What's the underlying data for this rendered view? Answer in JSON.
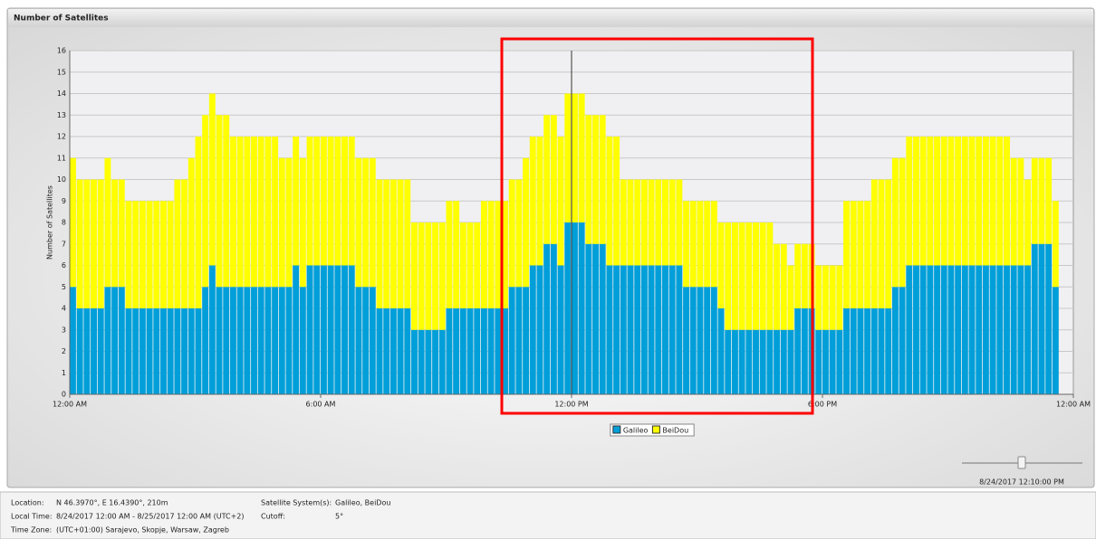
{
  "panel_title": "Number of Satellites",
  "chart_data": {
    "type": "bar",
    "stacked": true,
    "ylabel": "Number of Satellites",
    "x": [
      0,
      10,
      20,
      30,
      40,
      50,
      60,
      70,
      80,
      90,
      100,
      110,
      120,
      130,
      140,
      150,
      160,
      170,
      180,
      190,
      200,
      210,
      220,
      230,
      240,
      250,
      260,
      270,
      280,
      290,
      300,
      310,
      320,
      330,
      340,
      350,
      360,
      370,
      380,
      390,
      400,
      410,
      420,
      430,
      440,
      450,
      460,
      470,
      480,
      490,
      500,
      510,
      520,
      530,
      540,
      550,
      560,
      570,
      580,
      590,
      600,
      610,
      620,
      630,
      640,
      650,
      660,
      670,
      680,
      690,
      700,
      710,
      720,
      730,
      740,
      750,
      760,
      770,
      780,
      790,
      800,
      810,
      820,
      830,
      840,
      850,
      860,
      870,
      880,
      890,
      900,
      910,
      920,
      930,
      940,
      950,
      960,
      970,
      980,
      990,
      1000,
      1010,
      1020,
      1030,
      1040,
      1050,
      1060,
      1070,
      1080,
      1090,
      1100,
      1110,
      1120,
      1130,
      1140,
      1150,
      1160,
      1170,
      1180,
      1190,
      1200,
      1210,
      1220,
      1230,
      1240,
      1250,
      1260,
      1270,
      1280,
      1290,
      1300,
      1310,
      1320,
      1330,
      1340,
      1350,
      1360,
      1370,
      1380,
      1390,
      1400,
      1410
    ],
    "xlim": [
      0,
      1440
    ],
    "xticks": [
      {
        "value": 0,
        "label": "12:00 AM"
      },
      {
        "value": 360,
        "label": "6:00 AM"
      },
      {
        "value": 720,
        "label": "12:00 PM"
      },
      {
        "value": 1080,
        "label": "6:00 PM"
      },
      {
        "value": 1440,
        "label": "12:00 AM"
      }
    ],
    "ylim": [
      0,
      16
    ],
    "yticks": [
      0,
      1,
      2,
      3,
      4,
      5,
      6,
      7,
      8,
      9,
      10,
      11,
      12,
      13,
      14,
      15,
      16
    ],
    "grid": true,
    "legend": "bottom",
    "series": [
      {
        "name": "Galileo",
        "color": "#009fd9",
        "values": [
          5,
          4,
          4,
          4,
          4,
          5,
          5,
          5,
          4,
          4,
          4,
          4,
          4,
          4,
          4,
          4,
          4,
          4,
          4,
          5,
          6,
          5,
          5,
          5,
          5,
          5,
          5,
          5,
          5,
          5,
          5,
          5,
          6,
          5,
          6,
          6,
          6,
          6,
          6,
          6,
          6,
          5,
          5,
          5,
          4,
          4,
          4,
          4,
          4,
          3,
          3,
          3,
          3,
          3,
          4,
          4,
          4,
          4,
          4,
          4,
          4,
          4,
          4,
          5,
          5,
          5,
          6,
          6,
          7,
          7,
          6,
          8,
          8,
          8,
          7,
          7,
          7,
          6,
          6,
          6,
          6,
          6,
          6,
          6,
          6,
          6,
          6,
          6,
          5,
          5,
          5,
          5,
          5,
          4,
          3,
          3,
          3,
          3,
          3,
          3,
          3,
          3,
          3,
          3,
          4,
          4,
          4,
          3,
          3,
          3,
          3,
          4,
          4,
          4,
          4,
          4,
          4,
          4,
          5,
          5,
          6,
          6,
          6,
          6,
          6,
          6,
          6,
          6,
          6,
          6,
          6,
          6,
          6,
          6,
          6,
          6,
          6,
          6,
          7,
          7,
          7,
          5
        ]
      },
      {
        "name": "BeiDou",
        "color": "#ffff00",
        "values": [
          6,
          6,
          6,
          6,
          6,
          6,
          5,
          5,
          5,
          5,
          5,
          5,
          5,
          5,
          5,
          6,
          6,
          7,
          8,
          8,
          8,
          8,
          8,
          7,
          7,
          7,
          7,
          7,
          7,
          7,
          6,
          6,
          6,
          6,
          6,
          6,
          6,
          6,
          6,
          6,
          6,
          6,
          6,
          6,
          6,
          6,
          6,
          6,
          6,
          5,
          5,
          5,
          5,
          5,
          5,
          5,
          4,
          4,
          4,
          5,
          5,
          5,
          5,
          5,
          5,
          6,
          6,
          6,
          6,
          6,
          6,
          6,
          6,
          6,
          6,
          6,
          6,
          6,
          6,
          4,
          4,
          4,
          4,
          4,
          4,
          4,
          4,
          4,
          4,
          4,
          4,
          4,
          4,
          4,
          5,
          5,
          5,
          5,
          5,
          5,
          5,
          4,
          4,
          3,
          3,
          3,
          3,
          3,
          3,
          3,
          3,
          5,
          5,
          5,
          5,
          6,
          6,
          6,
          6,
          6,
          6,
          6,
          6,
          6,
          6,
          6,
          6,
          6,
          6,
          6,
          6,
          6,
          6,
          6,
          6,
          5,
          5,
          4,
          4,
          4,
          4,
          4
        ]
      }
    ]
  },
  "slider": {
    "label": "8/24/2017 12:10:00 PM"
  },
  "info": {
    "location_label": "Location:",
    "location": "N 46.3970°, E 16.4390°, 210m",
    "local_time_label": "Local Time:",
    "local_time": "8/24/2017 12:00 AM - 8/25/2017 12:00 AM (UTC+2)",
    "time_zone_label": "Time Zone:",
    "time_zone": "(UTC+01:00) Sarajevo, Skopje, Warsaw, Zagreb",
    "systems_label": "Satellite System(s):",
    "systems": "Galileo, BeiDou",
    "cutoff_label": "Cutoff:",
    "cutoff": "5°"
  }
}
